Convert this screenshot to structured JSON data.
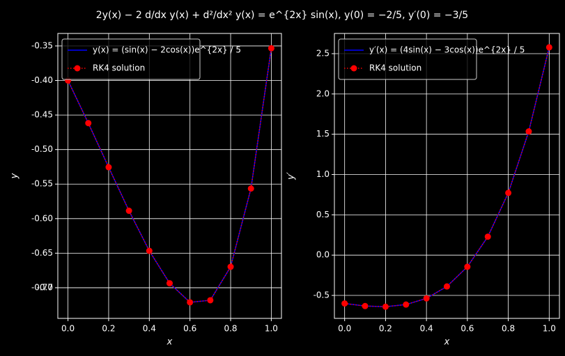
{
  "title": "2y(x) − 2 d/dx y(x) + d²/dx² y(x) = e^{2x} sin(x), y(0) = −2/5, y′(0) = −3/5",
  "chart_data": [
    {
      "type": "line",
      "xlabel": "x",
      "ylabel": "y",
      "x": [
        0,
        0.1,
        0.2,
        0.3,
        0.4,
        0.5,
        0.6,
        0.7,
        0.8,
        0.9,
        1.0
      ],
      "series": [
        {
          "name": "y(x) = (sin(x) − 2cos(x))e^{2x} / 5",
          "color": "#0000ff",
          "style": "solid",
          "values": [
            -0.4,
            -0.46173,
            -0.52556,
            -0.5886,
            -0.64661,
            -0.69356,
            -0.72116,
            -0.71814,
            -0.66971,
            -0.55643,
            -0.35339
          ]
        },
        {
          "name": "RK4 solution",
          "color": "#ff0000",
          "style": "dotted-marker",
          "values": [
            -0.4,
            -0.46173,
            -0.52556,
            -0.5886,
            -0.64661,
            -0.69356,
            -0.72116,
            -0.71814,
            -0.66971,
            -0.55643,
            -0.35339
          ]
        }
      ],
      "xlim": [
        -0.05,
        1.05
      ],
      "ylim": [
        -0.7444,
        -0.3319
      ],
      "xticks": [
        {
          "value": 0,
          "label": "0.0"
        },
        0.2,
        0.4,
        0.6,
        0.8,
        {
          "value": 1,
          "label": "1.0"
        }
      ],
      "yticks": [
        -0.7,
        {
          "value": -0.7,
          "label": "-0.70"
        },
        -0.65,
        {
          "value": -0.6,
          "label": "-0.60"
        },
        -0.55,
        {
          "value": -0.5,
          "label": "-0.50"
        },
        -0.45,
        {
          "value": -0.4,
          "label": "-0.40"
        },
        -0.35
      ],
      "grid": true,
      "legend": "upper-left"
    },
    {
      "type": "line",
      "xlabel": "x",
      "ylabel": "y′",
      "x": [
        0,
        0.1,
        0.2,
        0.3,
        0.4,
        0.5,
        0.6,
        0.7,
        0.8,
        0.9,
        1.0
      ],
      "series": [
        {
          "name": "y′(x) = (4sin(x) − 3cos(x))e^{2x} / 5",
          "color": "#0000ff",
          "style": "solid",
          "values": [
            -0.6,
            -0.63163,
            -0.64015,
            -0.61367,
            -0.53658,
            -0.38872,
            -0.1444,
            0.22901,
            0.77199,
            1.53478,
            2.57875
          ]
        },
        {
          "name": "RK4 solution",
          "color": "#ff0000",
          "style": "dotted-marker",
          "values": [
            -0.6,
            -0.63163,
            -0.64015,
            -0.61367,
            -0.53658,
            -0.38872,
            -0.1444,
            0.22901,
            0.77199,
            1.53478,
            2.57875
          ]
        }
      ],
      "xlim": [
        -0.05,
        1.05
      ],
      "ylim": [
        -0.785,
        2.751
      ],
      "xticks": [
        {
          "value": 0,
          "label": "0.0"
        },
        0.2,
        0.4,
        0.6,
        0.8,
        {
          "value": 1,
          "label": "1.0"
        }
      ],
      "yticks": [
        -0.5,
        {
          "value": 0,
          "label": "0.0"
        },
        0.5,
        {
          "value": 1,
          "label": "1.0"
        },
        1.5,
        {
          "value": 2,
          "label": "2.0"
        },
        2.5
      ],
      "grid": true,
      "legend": "upper-left"
    }
  ]
}
